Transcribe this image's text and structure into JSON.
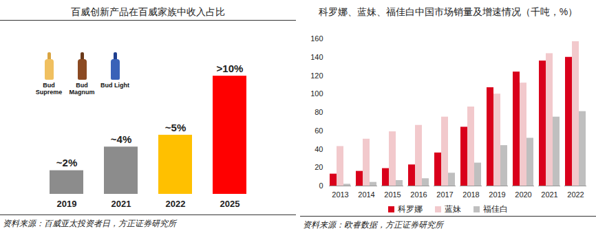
{
  "chart_data": [
    {
      "type": "bar",
      "title": "百威创新产品在百威家族中收入占比",
      "categories": [
        "2019",
        "2021",
        "2022",
        "2025"
      ],
      "values": [
        2,
        4,
        5,
        10
      ],
      "value_labels": [
        "~2%",
        "~4%",
        "~5%",
        ">10%"
      ],
      "colors": [
        "#8c8c8c",
        "#8c8c8c",
        "#ffc000",
        "#ff0000"
      ],
      "data_labels": true,
      "tick_labels": "x",
      "annotations": [
        "Bud Supreme",
        "Bud Magnum",
        "Bud Light"
      ],
      "source": "资料来源：百威亚太投资者日，方正证券研究所"
    },
    {
      "type": "bar",
      "title": "科罗娜、蓝妹、福佳白中国市场销量及增速情况（千吨，%）",
      "categories": [
        "2013",
        "2014",
        "2015",
        "2016",
        "2017",
        "2018",
        "2019",
        "2020",
        "2021",
        "2022"
      ],
      "series": [
        {
          "name": "科罗娜",
          "color": "#d9001b",
          "values": [
            13,
            16,
            19,
            23,
            36,
            64,
            107,
            124,
            136,
            140
          ]
        },
        {
          "name": "蓝妹",
          "color": "#f2c9cc",
          "values": [
            43,
            51,
            59,
            66,
            75,
            86,
            100,
            112,
            144,
            157
          ]
        },
        {
          "name": "福佳白",
          "color": "#bfbfbf",
          "values": [
            2,
            4,
            6,
            8,
            14,
            25,
            44,
            52,
            75,
            81
          ]
        }
      ],
      "ylim": [
        0,
        160
      ],
      "yticks": [
        0,
        20,
        40,
        60,
        80,
        100,
        120,
        140,
        160
      ],
      "legend": "bottom",
      "source": "资料来源：欧睿数据，方正证券研究所"
    }
  ]
}
